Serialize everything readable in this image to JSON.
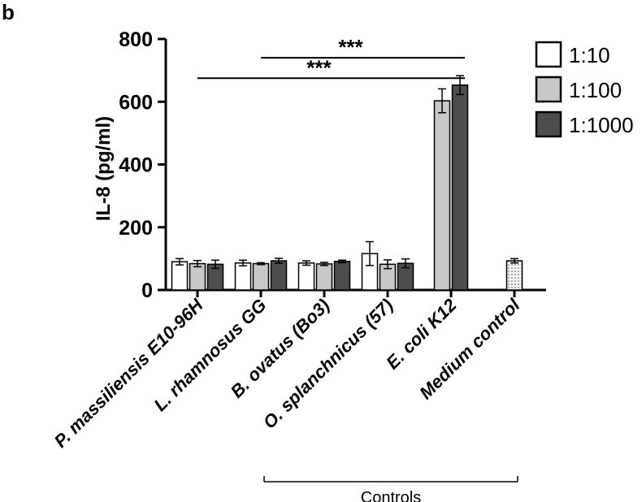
{
  "panel_label": "b",
  "chart_data": {
    "type": "bar",
    "ylabel": "IL-8 (pg/ml)",
    "ylim": [
      0,
      800
    ],
    "yticks": [
      0,
      200,
      400,
      600,
      800
    ],
    "categories": [
      "P. massiliensis E10-96H",
      "L. rhamnosus GG",
      "B. ovatus (Bo3)",
      "O. splanchnicus (57)",
      "E. coli K12",
      "Medium control"
    ],
    "series": [
      {
        "name": "1:10",
        "color": "#ffffff",
        "values": [
          90,
          86,
          86,
          116,
          null,
          null
        ],
        "errors": [
          10,
          9,
          7,
          38,
          null,
          null
        ]
      },
      {
        "name": "1:100",
        "color": "#c8c8c8",
        "values": [
          84,
          84,
          83,
          82,
          603,
          null
        ],
        "errors": [
          10,
          3,
          5,
          14,
          38,
          null
        ]
      },
      {
        "name": "1:1000",
        "color": "#4d4d4d",
        "values": [
          82,
          93,
          91,
          85,
          653,
          null
        ],
        "errors": [
          13,
          8,
          4,
          14,
          30,
          null
        ]
      },
      {
        "name": "",
        "color": "#ececec",
        "values": [
          null,
          null,
          null,
          null,
          null,
          93
        ],
        "errors": [
          null,
          null,
          null,
          null,
          null,
          7
        ]
      }
    ],
    "significance": [
      {
        "label": "***",
        "from": "P. massiliensis E10-96H",
        "to": "E. coli K12",
        "y": 675
      },
      {
        "label": "***",
        "from": "L. rhamnosus GG",
        "to": "E. coli K12",
        "y": 740
      }
    ],
    "group_bracket": {
      "label": "Controls",
      "from": "L. rhamnosus GG",
      "to": "Medium control"
    },
    "legend_position": "top-right"
  }
}
